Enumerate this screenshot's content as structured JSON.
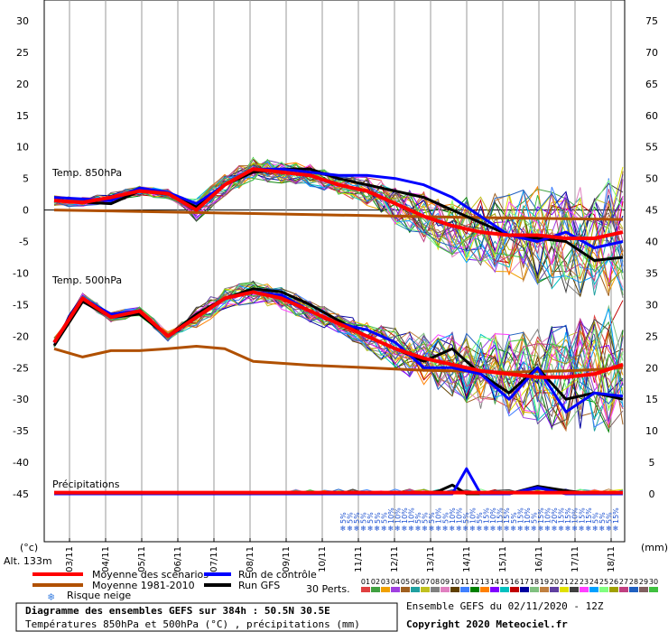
{
  "chart_data": {
    "type": "line",
    "x_dates": [
      "03/11",
      "04/11",
      "05/11",
      "06/11",
      "07/11",
      "08/11",
      "09/11",
      "10/11",
      "11/11",
      "12/11",
      "13/11",
      "14/11",
      "15/11",
      "16/11",
      "17/11",
      "18/11"
    ],
    "y_left_ticks": [
      30,
      25,
      20,
      15,
      10,
      5,
      0,
      -5,
      -10,
      -15,
      -20,
      -25,
      -30,
      -35,
      -40,
      -45
    ],
    "y_right_ticks": [
      75,
      70,
      65,
      60,
      55,
      50,
      45,
      40,
      35,
      30,
      25,
      20,
      15,
      10,
      5,
      0
    ],
    "y_left_unit": "(°c)",
    "y_right_unit": "(mm)",
    "altitude_label": "Alt. 133m",
    "panel_labels": {
      "t850": "Temp. 850hPa",
      "t500": "Temp. 500hPa",
      "precip": "Précipitations"
    },
    "snow_risk_percent": [
      "5%",
      "5%",
      "5%",
      "5%",
      "5%",
      "5%",
      "5%",
      "10%",
      "10%",
      "10%",
      "10%",
      "5%",
      "5%",
      "5%",
      "10%",
      "5%",
      "10%",
      "10%",
      "5%",
      "10%",
      "5%",
      "15%",
      "10%",
      "15%",
      "15%",
      "5%",
      "15%",
      "10%",
      "5%",
      "15%",
      "10%",
      "20%",
      "15%",
      "15%",
      "10%",
      "15%",
      "15%",
      "5%",
      "5%",
      "5%",
      "15%"
    ],
    "series": [
      {
        "name": "Moyenne des scénarios",
        "color": "#ff0000",
        "t850": [
          [
            0,
            1.5
          ],
          [
            1,
            1.2
          ],
          [
            2,
            2
          ],
          [
            3,
            3
          ],
          [
            4,
            2.6
          ],
          [
            5,
            0
          ],
          [
            6,
            4
          ],
          [
            7,
            6.5
          ],
          [
            8,
            6
          ],
          [
            9,
            5.5
          ],
          [
            10,
            4
          ],
          [
            11,
            3
          ],
          [
            12,
            1
          ],
          [
            13,
            -1
          ],
          [
            14,
            -2.5
          ],
          [
            15,
            -3.5
          ],
          [
            16,
            -4
          ],
          [
            17,
            -4
          ],
          [
            18,
            -4.5
          ],
          [
            19,
            -4.5
          ],
          [
            20,
            -3.5
          ]
        ],
        "t500": [
          [
            0,
            -21
          ],
          [
            1,
            -14
          ],
          [
            2,
            -17
          ],
          [
            3,
            -16
          ],
          [
            4,
            -20
          ],
          [
            5,
            -17
          ],
          [
            6,
            -14
          ],
          [
            7,
            -13
          ],
          [
            8,
            -14
          ],
          [
            9,
            -16
          ],
          [
            10,
            -18
          ],
          [
            11,
            -20
          ],
          [
            12,
            -22
          ],
          [
            13,
            -23.5
          ],
          [
            14,
            -24.5
          ],
          [
            15,
            -25.5
          ],
          [
            16,
            -26
          ],
          [
            17,
            -26.5
          ],
          [
            18,
            -26.5
          ],
          [
            19,
            -26
          ],
          [
            20,
            -24.5
          ]
        ],
        "precip": [
          [
            0,
            0.2
          ],
          [
            20,
            0.2
          ]
        ]
      },
      {
        "name": "Moyenne 1981-2010",
        "color": "#b05000",
        "t850": [
          [
            0,
            0
          ],
          [
            5,
            -0.4
          ],
          [
            10,
            -0.8
          ],
          [
            15,
            -1.2
          ],
          [
            20,
            -1.5
          ]
        ],
        "t500": [
          [
            0,
            -22
          ],
          [
            1,
            -23.3
          ],
          [
            2,
            -22.3
          ],
          [
            3,
            -22.3
          ],
          [
            4,
            -22
          ],
          [
            5,
            -21.6
          ],
          [
            6,
            -22
          ],
          [
            7,
            -24
          ],
          [
            8,
            -24.3
          ],
          [
            9,
            -24.6
          ],
          [
            10,
            -24.8
          ],
          [
            11,
            -25
          ],
          [
            12,
            -25.2
          ],
          [
            13,
            -25.4
          ],
          [
            14,
            -25.5
          ],
          [
            15,
            -25.6
          ],
          [
            16,
            -25.7
          ],
          [
            17,
            -25.6
          ],
          [
            18,
            -25.5
          ],
          [
            19,
            -25.3
          ],
          [
            20,
            -25
          ]
        ]
      },
      {
        "name": "Run de contrôle",
        "color": "#0000ff",
        "t850": [
          [
            0,
            2
          ],
          [
            2,
            1.5
          ],
          [
            3,
            3.5
          ],
          [
            4,
            2.8
          ],
          [
            5,
            1
          ],
          [
            6,
            4
          ],
          [
            7,
            6.5
          ],
          [
            8,
            6.5
          ],
          [
            9,
            6
          ],
          [
            10,
            5.5
          ],
          [
            11,
            5.5
          ],
          [
            12,
            5
          ],
          [
            13,
            4
          ],
          [
            14,
            2
          ],
          [
            15,
            -1
          ],
          [
            16,
            -4
          ],
          [
            17,
            -5
          ],
          [
            18,
            -3.5
          ],
          [
            19,
            -6
          ],
          [
            20,
            -5
          ]
        ],
        "t500": [
          [
            0,
            -21
          ],
          [
            1,
            -14
          ],
          [
            2,
            -16.5
          ],
          [
            3,
            -16
          ],
          [
            4,
            -20
          ],
          [
            5,
            -17
          ],
          [
            6,
            -14
          ],
          [
            7,
            -13
          ],
          [
            8,
            -13.5
          ],
          [
            9,
            -16
          ],
          [
            10,
            -18
          ],
          [
            11,
            -19
          ],
          [
            12,
            -21
          ],
          [
            13,
            -25
          ],
          [
            14,
            -25
          ],
          [
            15,
            -26
          ],
          [
            16,
            -30
          ],
          [
            17,
            -25
          ],
          [
            18,
            -32
          ],
          [
            19,
            -29
          ],
          [
            20,
            -29.5
          ]
        ],
        "precip": [
          [
            0,
            0
          ],
          [
            14,
            0
          ],
          [
            14.5,
            4
          ],
          [
            15,
            0
          ],
          [
            16,
            0
          ],
          [
            17,
            1
          ],
          [
            18,
            0
          ],
          [
            20,
            0
          ]
        ]
      },
      {
        "name": "Run GFS",
        "color": "#000000",
        "t850": [
          [
            0,
            1.5
          ],
          [
            2,
            1
          ],
          [
            3,
            3
          ],
          [
            4,
            2.5
          ],
          [
            5,
            0.5
          ],
          [
            6,
            4
          ],
          [
            7,
            6
          ],
          [
            8,
            6.5
          ],
          [
            9,
            6.5
          ],
          [
            10,
            5
          ],
          [
            11,
            4
          ],
          [
            12,
            3
          ],
          [
            13,
            2
          ],
          [
            14,
            0
          ],
          [
            15,
            -2
          ],
          [
            16,
            -4
          ],
          [
            17,
            -4.5
          ],
          [
            18,
            -5
          ],
          [
            19,
            -8
          ],
          [
            20,
            -7.5
          ]
        ],
        "t500": [
          [
            0,
            -21.5
          ],
          [
            1,
            -14.5
          ],
          [
            2,
            -17
          ],
          [
            3,
            -16.5
          ],
          [
            4,
            -20
          ],
          [
            5,
            -16.5
          ],
          [
            6,
            -14
          ],
          [
            7,
            -12.5
          ],
          [
            8,
            -13
          ],
          [
            9,
            -15
          ],
          [
            10,
            -17.5
          ],
          [
            11,
            -20
          ],
          [
            12,
            -22
          ],
          [
            13,
            -24
          ],
          [
            14,
            -22
          ],
          [
            15,
            -26
          ],
          [
            16,
            -29
          ],
          [
            17,
            -25
          ],
          [
            18,
            -30
          ],
          [
            19,
            -29
          ],
          [
            20,
            -30
          ]
        ],
        "precip": [
          [
            0,
            0
          ],
          [
            13,
            0
          ],
          [
            13.5,
            0.4
          ],
          [
            14,
            1.4
          ],
          [
            14.5,
            0
          ],
          [
            16,
            0
          ],
          [
            17,
            1.2
          ],
          [
            18,
            0.5
          ],
          [
            19,
            0
          ],
          [
            20,
            0
          ]
        ]
      }
    ]
  },
  "legend": {
    "mean_scenarios": "Moyenne des scénarios",
    "mean_climate": "Moyenne 1981-2010",
    "control_run": "Run de contrôle",
    "gfs_run": "Run GFS",
    "snow_risk": "Risque neige",
    "perts_label": "30 Perts.",
    "pert_numbers": [
      "01",
      "02",
      "03",
      "04",
      "05",
      "06",
      "07",
      "08",
      "09",
      "10",
      "11",
      "12",
      "13",
      "14",
      "15",
      "16",
      "17",
      "18",
      "19",
      "20",
      "21",
      "22",
      "23",
      "24",
      "25",
      "26",
      "27",
      "28",
      "29",
      "30"
    ],
    "pert_colors": [
      "#e04040",
      "#40a040",
      "#f0a000",
      "#a040e0",
      "#a06020",
      "#20a0a0",
      "#c0c020",
      "#808080",
      "#e080c0",
      "#604000",
      "#4080ff",
      "#008000",
      "#ff8000",
      "#8000ff",
      "#00c0c0",
      "#c00000",
      "#0000a0",
      "#80c080",
      "#c08040",
      "#6040a0",
      "#e0e000",
      "#404040",
      "#ff40ff",
      "#00a0ff",
      "#80ff80",
      "#a0a000",
      "#c04080",
      "#2060c0",
      "#806060",
      "#40c040"
    ]
  },
  "footer": {
    "title": "Diagramme des ensembles GEFS sur 384h : 50.5N 30.5E",
    "subtitle": "Températures 850hPa et 500hPa (°C) , précipitations (mm)",
    "run_info": "Ensemble GEFS du 02/11/2020 - 12Z",
    "copyright": "Copyright 2020 Meteociel.fr"
  }
}
